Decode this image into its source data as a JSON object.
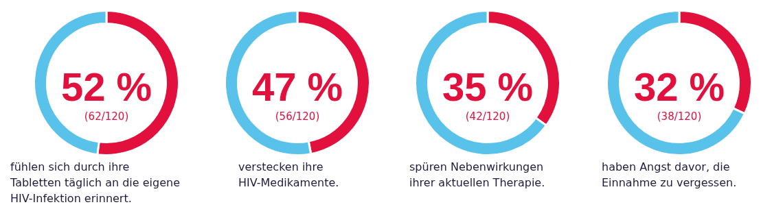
{
  "chart_data": [
    {
      "type": "donut",
      "categories": [
        null,
        null
      ],
      "values": [
        52,
        48
      ],
      "colors": [
        "#e2103c",
        "#58c2eb"
      ],
      "annotations": [
        "52 %",
        "(62/120)",
        "fühlen sich durch ihre Tabletten täglich an die eigene HIV-Infektion erinnert."
      ]
    },
    {
      "type": "donut",
      "categories": [
        null,
        null
      ],
      "values": [
        47,
        53
      ],
      "colors": [
        "#e2103c",
        "#58c2eb"
      ],
      "annotations": [
        "47 %",
        "(56/120)",
        "verstecken ihre HIV-Medikamente."
      ]
    },
    {
      "type": "donut",
      "categories": [
        null,
        null
      ],
      "values": [
        35,
        65
      ],
      "colors": [
        "#e2103c",
        "#58c2eb"
      ],
      "annotations": [
        "35 %",
        "(42/120)",
        "spüren Nebenwirkungen ihrer aktuellen Therapie."
      ]
    },
    {
      "type": "donut",
      "categories": [
        null,
        null
      ],
      "values": [
        32,
        68
      ],
      "colors": [
        "#e2103c",
        "#58c2eb"
      ],
      "annotations": [
        "32 %",
        "(38/120)",
        "haben Angst davor, die Einnahme zu vergessen."
      ]
    }
  ]
}
